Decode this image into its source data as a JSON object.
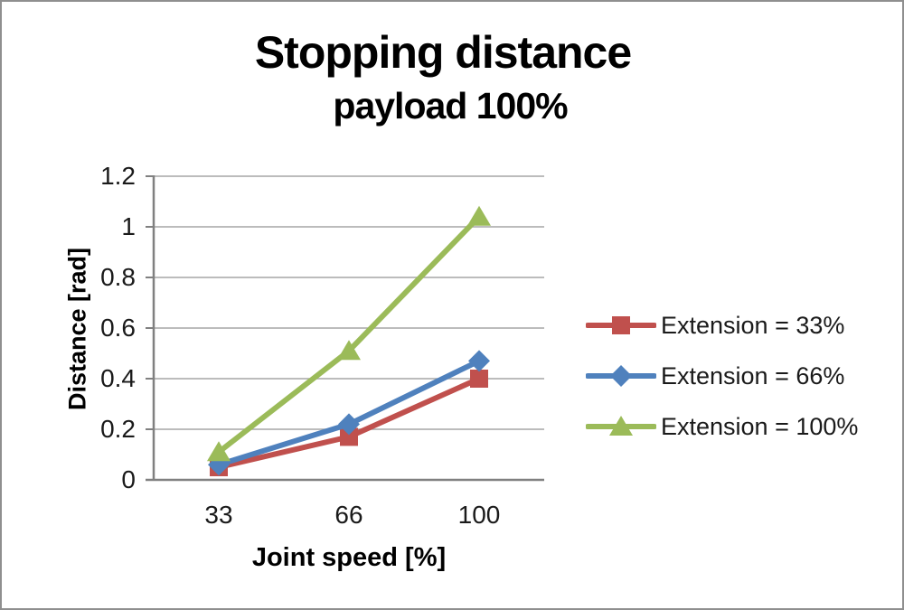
{
  "chart_data": {
    "type": "line",
    "title": "Stopping distance",
    "subtitle": "payload 100%",
    "xlabel": "Joint speed [%]",
    "ylabel": "Distance [rad]",
    "categories": [
      "33",
      "66",
      "100"
    ],
    "ylim": [
      0,
      1.2
    ],
    "ytick_step": 0.2,
    "yticks": [
      "0",
      "0.2",
      "0.4",
      "0.6",
      "0.8",
      "1",
      "1.2"
    ],
    "grid": true,
    "legend_position": "right",
    "series": [
      {
        "name": "Extension = 33%",
        "marker": "square",
        "color": "#C0504D",
        "values": [
          0.05,
          0.17,
          0.4
        ]
      },
      {
        "name": "Extension = 66%",
        "marker": "diamond",
        "color": "#4F81BD",
        "values": [
          0.06,
          0.22,
          0.47
        ]
      },
      {
        "name": "Extension = 100%",
        "marker": "triangle",
        "color": "#9BBB59",
        "values": [
          0.11,
          0.51,
          1.04
        ]
      }
    ],
    "colors": {
      "gridline": "#A6A6A6",
      "axis": "#808080",
      "text": "#1A1A1A",
      "background": "#FFFFFF",
      "border": "#8F8F8F"
    }
  }
}
